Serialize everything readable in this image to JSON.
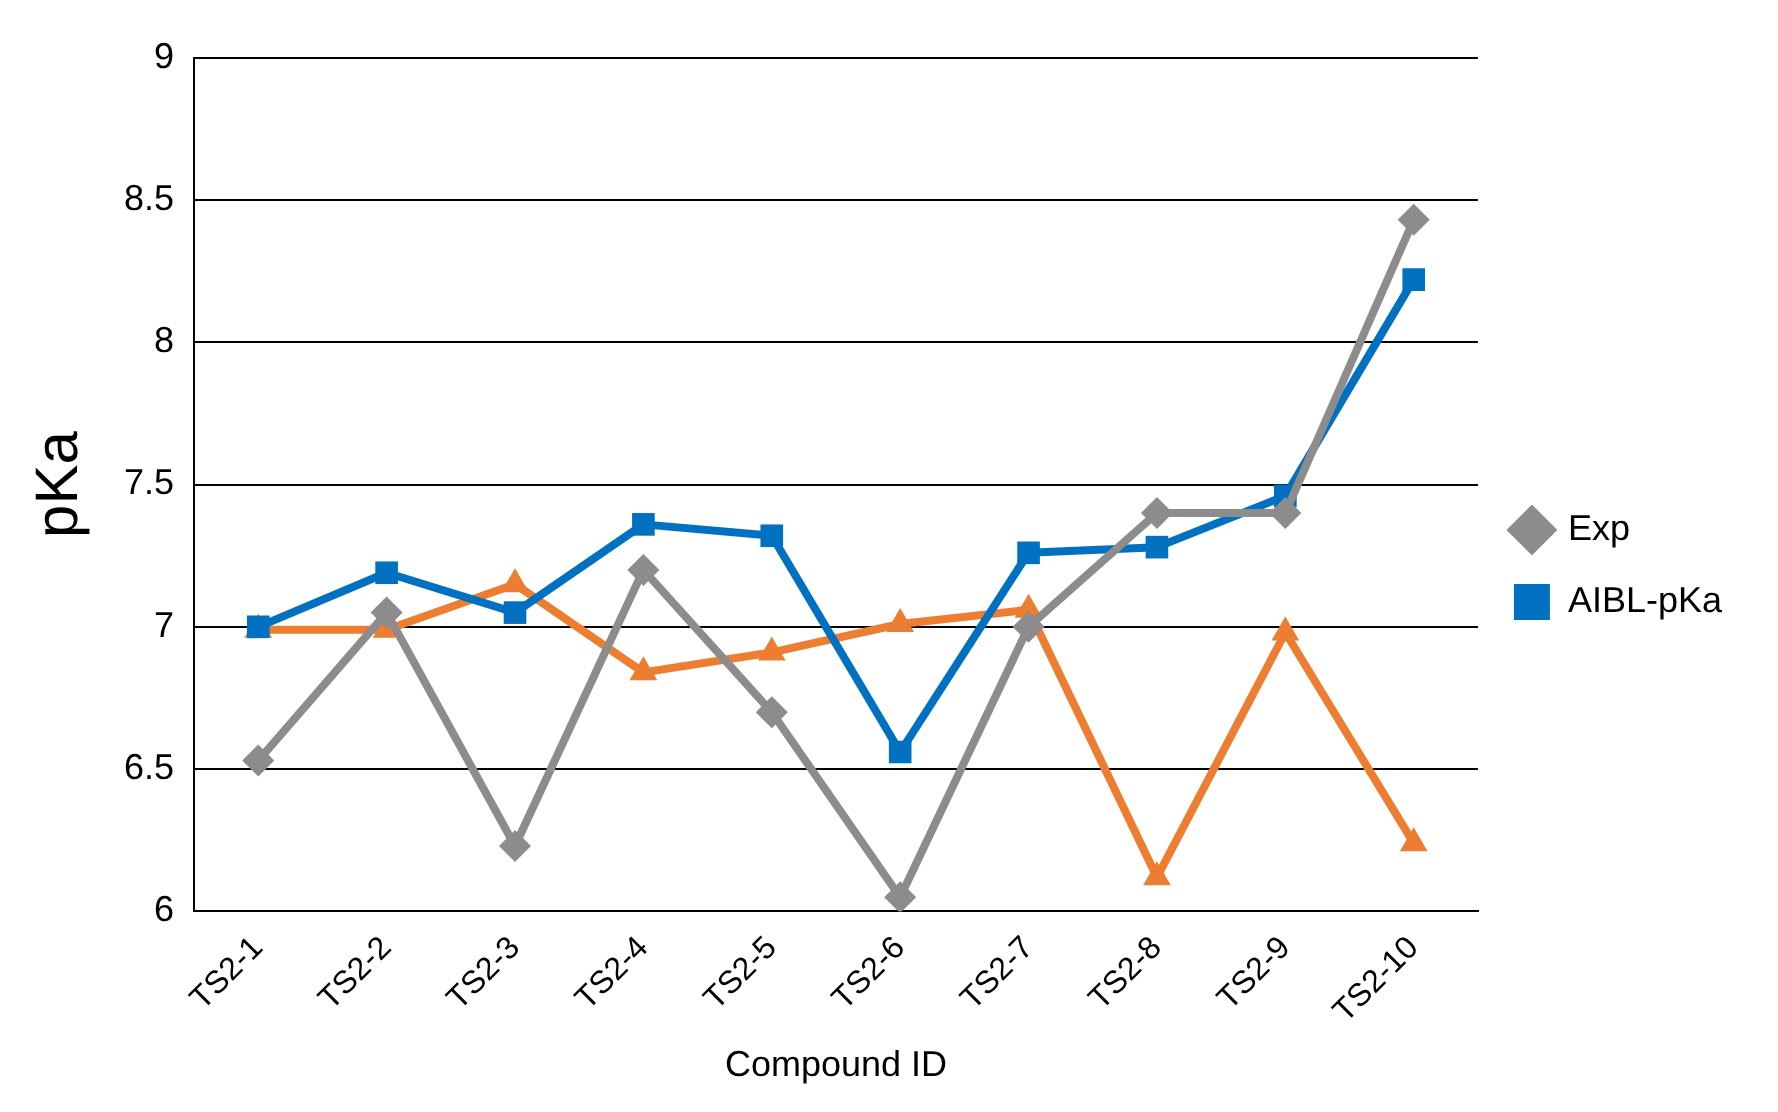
{
  "chart_data": {
    "type": "line",
    "xlabel": "Compound ID",
    "ylabel": "pKa",
    "categories": [
      "TS2-1",
      "TS2-2",
      "TS2-3",
      "TS2-4",
      "TS2-5",
      "TS2-6",
      "TS2-7",
      "TS2-8",
      "TS2-9",
      "TS2-10"
    ],
    "series": [
      {
        "name": "Exp",
        "color": "#8c8c8c",
        "marker": "diamond",
        "values": [
          6.53,
          7.05,
          6.23,
          7.2,
          6.7,
          6.05,
          7.0,
          7.4,
          7.4,
          8.43
        ]
      },
      {
        "name": "AIBL-pKa",
        "color": "#0070c0",
        "marker": "square",
        "values": [
          7.0,
          7.19,
          7.05,
          7.36,
          7.32,
          6.56,
          7.26,
          7.28,
          7.46,
          8.22
        ]
      },
      {
        "color": "#ed7d31",
        "marker": "triangle",
        "values": [
          6.99,
          6.99,
          7.15,
          6.84,
          6.91,
          7.01,
          7.06,
          6.12,
          6.98,
          6.24
        ]
      }
    ],
    "ylim": [
      6,
      9
    ],
    "yticks": [
      6,
      6.5,
      7,
      7.5,
      8,
      8.5,
      9
    ],
    "grid": "y",
    "legend": "right"
  }
}
